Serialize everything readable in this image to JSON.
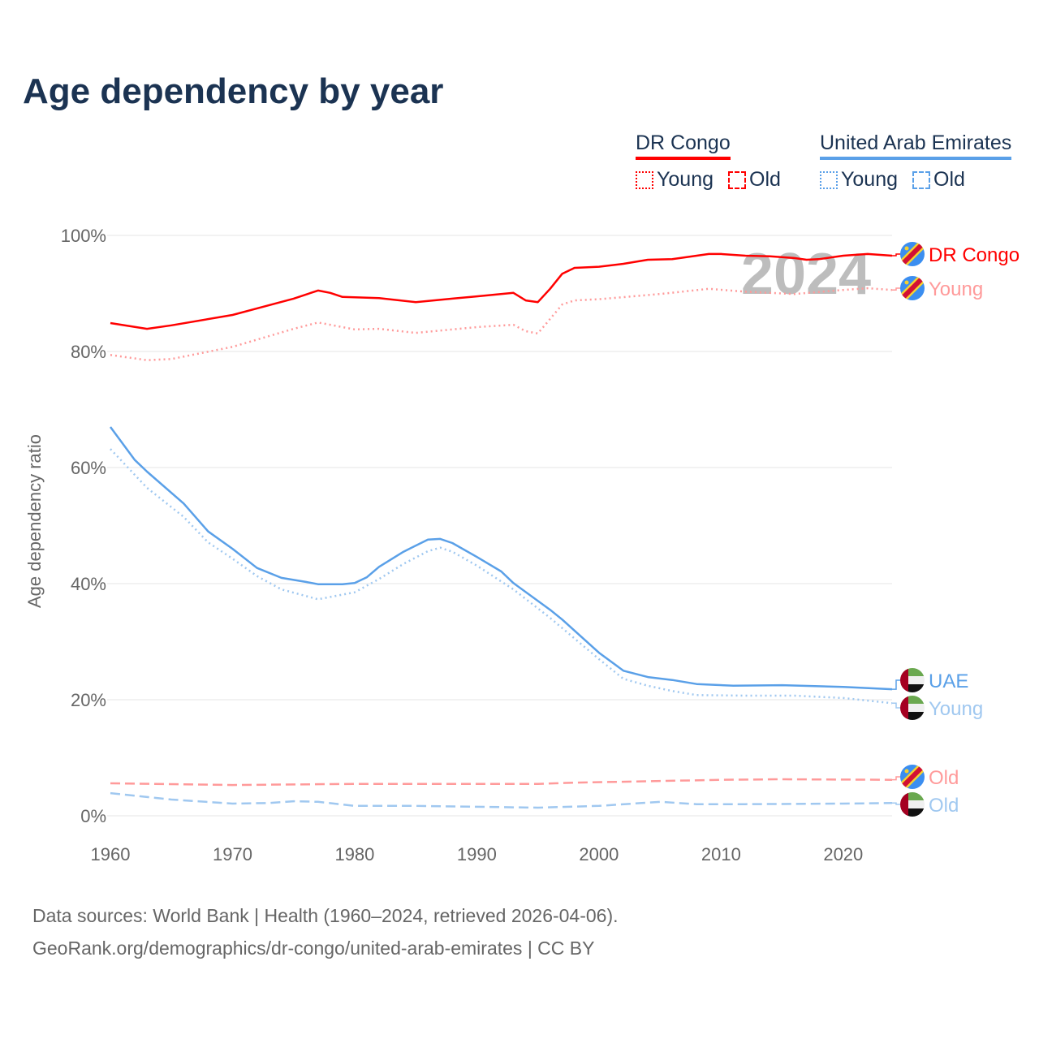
{
  "title": "Age dependency by year",
  "legend": {
    "groups": [
      {
        "name": "DR Congo",
        "color": "#ff0000",
        "items": [
          "Young",
          "Old"
        ]
      },
      {
        "name": "United Arab Emirates",
        "color": "#5aa0e8",
        "items": [
          "Young",
          "Old"
        ]
      }
    ]
  },
  "footer": {
    "line1": "Data sources: World Bank | Health (1960–2024, retrieved 2026-04-06).",
    "line2": "GeoRank.org/demographics/dr-congo/united-arab-emirates | CC BY"
  },
  "chart_data": {
    "type": "line",
    "title": "Age dependency by year",
    "xlabel": "",
    "ylabel": "Age dependency ratio",
    "xlim": [
      1960,
      2024
    ],
    "ylim": [
      0,
      100
    ],
    "x_ticks": [
      "1960",
      "1970",
      "1980",
      "1990",
      "2000",
      "2010",
      "2020"
    ],
    "y_ticks": [
      "0%",
      "20%",
      "40%",
      "60%",
      "80%",
      "100%"
    ],
    "grid": true,
    "year_watermark": "2024",
    "series": [
      {
        "name": "DR Congo",
        "end_label": "DR Congo",
        "color": "#ff0000",
        "style": "solid",
        "flag": "dr-congo",
        "points": [
          [
            1960,
            84.9
          ],
          [
            1963,
            83.9
          ],
          [
            1965,
            84.5
          ],
          [
            1970,
            86.3
          ],
          [
            1975,
            89.1
          ],
          [
            1977,
            90.5
          ],
          [
            1978,
            90.1
          ],
          [
            1979,
            89.4
          ],
          [
            1982,
            89.2
          ],
          [
            1985,
            88.5
          ],
          [
            1988,
            89.1
          ],
          [
            1990,
            89.5
          ],
          [
            1993,
            90.1
          ],
          [
            1994,
            88.8
          ],
          [
            1995,
            88.5
          ],
          [
            1996,
            90.8
          ],
          [
            1997,
            93.4
          ],
          [
            1998,
            94.4
          ],
          [
            2000,
            94.6
          ],
          [
            2002,
            95.1
          ],
          [
            2004,
            95.8
          ],
          [
            2006,
            95.9
          ],
          [
            2009,
            96.8
          ],
          [
            2010,
            96.8
          ],
          [
            2012,
            96.5
          ],
          [
            2014,
            96.4
          ],
          [
            2016,
            96.1
          ],
          [
            2017,
            95.8
          ],
          [
            2018,
            95.9
          ],
          [
            2020,
            96.5
          ],
          [
            2022,
            96.8
          ],
          [
            2024,
            96.5
          ]
        ]
      },
      {
        "name": "DR Congo Young",
        "end_label": "Young",
        "color": "#ff9a9a",
        "style": "dotted",
        "flag": "dr-congo",
        "points": [
          [
            1960,
            79.4
          ],
          [
            1963,
            78.5
          ],
          [
            1965,
            78.7
          ],
          [
            1970,
            80.8
          ],
          [
            1975,
            83.9
          ],
          [
            1977,
            85.0
          ],
          [
            1980,
            83.8
          ],
          [
            1982,
            83.9
          ],
          [
            1985,
            83.2
          ],
          [
            1990,
            84.2
          ],
          [
            1993,
            84.6
          ],
          [
            1994,
            83.5
          ],
          [
            1995,
            83.1
          ],
          [
            1997,
            88.1
          ],
          [
            1998,
            88.8
          ],
          [
            2000,
            89.0
          ],
          [
            2005,
            89.9
          ],
          [
            2009,
            90.8
          ],
          [
            2012,
            90.3
          ],
          [
            2016,
            89.9
          ],
          [
            2020,
            90.6
          ],
          [
            2022,
            90.9
          ],
          [
            2024,
            90.6
          ]
        ]
      },
      {
        "name": "DR Congo Old",
        "end_label": "Old",
        "color": "#ff9a9a",
        "style": "dashed",
        "flag": "dr-congo",
        "points": [
          [
            1960,
            5.6
          ],
          [
            1970,
            5.3
          ],
          [
            1980,
            5.5
          ],
          [
            1995,
            5.5
          ],
          [
            1998,
            5.7
          ],
          [
            2010,
            6.2
          ],
          [
            2015,
            6.3
          ],
          [
            2024,
            6.2
          ]
        ]
      },
      {
        "name": "UAE",
        "end_label": "UAE",
        "color": "#5aa0e8",
        "style": "solid",
        "flag": "uae",
        "points": [
          [
            1960,
            67.0
          ],
          [
            1962,
            61.3
          ],
          [
            1963,
            59.3
          ],
          [
            1966,
            53.8
          ],
          [
            1968,
            49.0
          ],
          [
            1970,
            46.0
          ],
          [
            1972,
            42.7
          ],
          [
            1974,
            41.0
          ],
          [
            1976,
            40.3
          ],
          [
            1977,
            39.9
          ],
          [
            1979,
            39.9
          ],
          [
            1980,
            40.1
          ],
          [
            1981,
            41.1
          ],
          [
            1982,
            42.9
          ],
          [
            1984,
            45.5
          ],
          [
            1986,
            47.6
          ],
          [
            1987,
            47.7
          ],
          [
            1988,
            47.0
          ],
          [
            1990,
            44.6
          ],
          [
            1992,
            42.1
          ],
          [
            1993,
            40.1
          ],
          [
            1996,
            35.5
          ],
          [
            1997,
            33.8
          ],
          [
            2000,
            28.1
          ],
          [
            2002,
            25.0
          ],
          [
            2004,
            23.9
          ],
          [
            2006,
            23.4
          ],
          [
            2008,
            22.7
          ],
          [
            2011,
            22.4
          ],
          [
            2015,
            22.5
          ],
          [
            2020,
            22.2
          ],
          [
            2024,
            21.8
          ]
        ]
      },
      {
        "name": "UAE Young",
        "end_label": "Young",
        "color": "#a0c8f0",
        "style": "dotted",
        "flag": "uae",
        "points": [
          [
            1960,
            63.2
          ],
          [
            1963,
            56.5
          ],
          [
            1966,
            51.5
          ],
          [
            1968,
            47.1
          ],
          [
            1970,
            44.3
          ],
          [
            1972,
            41.3
          ],
          [
            1974,
            39.0
          ],
          [
            1977,
            37.3
          ],
          [
            1980,
            38.5
          ],
          [
            1982,
            40.8
          ],
          [
            1984,
            43.4
          ],
          [
            1986,
            45.6
          ],
          [
            1987,
            46.2
          ],
          [
            1988,
            45.5
          ],
          [
            1990,
            43.1
          ],
          [
            1993,
            39.0
          ],
          [
            1996,
            34.1
          ],
          [
            2000,
            27.0
          ],
          [
            2002,
            23.6
          ],
          [
            2004,
            22.4
          ],
          [
            2006,
            21.5
          ],
          [
            2008,
            20.8
          ],
          [
            2012,
            20.7
          ],
          [
            2016,
            20.7
          ],
          [
            2020,
            20.3
          ],
          [
            2024,
            19.4
          ]
        ]
      },
      {
        "name": "UAE Old",
        "end_label": "Old",
        "color": "#a0c8f0",
        "style": "dashed",
        "flag": "uae",
        "points": [
          [
            1960,
            3.9
          ],
          [
            1965,
            2.8
          ],
          [
            1970,
            2.1
          ],
          [
            1973,
            2.2
          ],
          [
            1975,
            2.5
          ],
          [
            1977,
            2.4
          ],
          [
            1980,
            1.7
          ],
          [
            1985,
            1.7
          ],
          [
            1995,
            1.4
          ],
          [
            2000,
            1.7
          ],
          [
            2005,
            2.4
          ],
          [
            2008,
            2.0
          ],
          [
            2012,
            2.0
          ],
          [
            2020,
            2.1
          ],
          [
            2024,
            2.2
          ]
        ]
      }
    ]
  }
}
